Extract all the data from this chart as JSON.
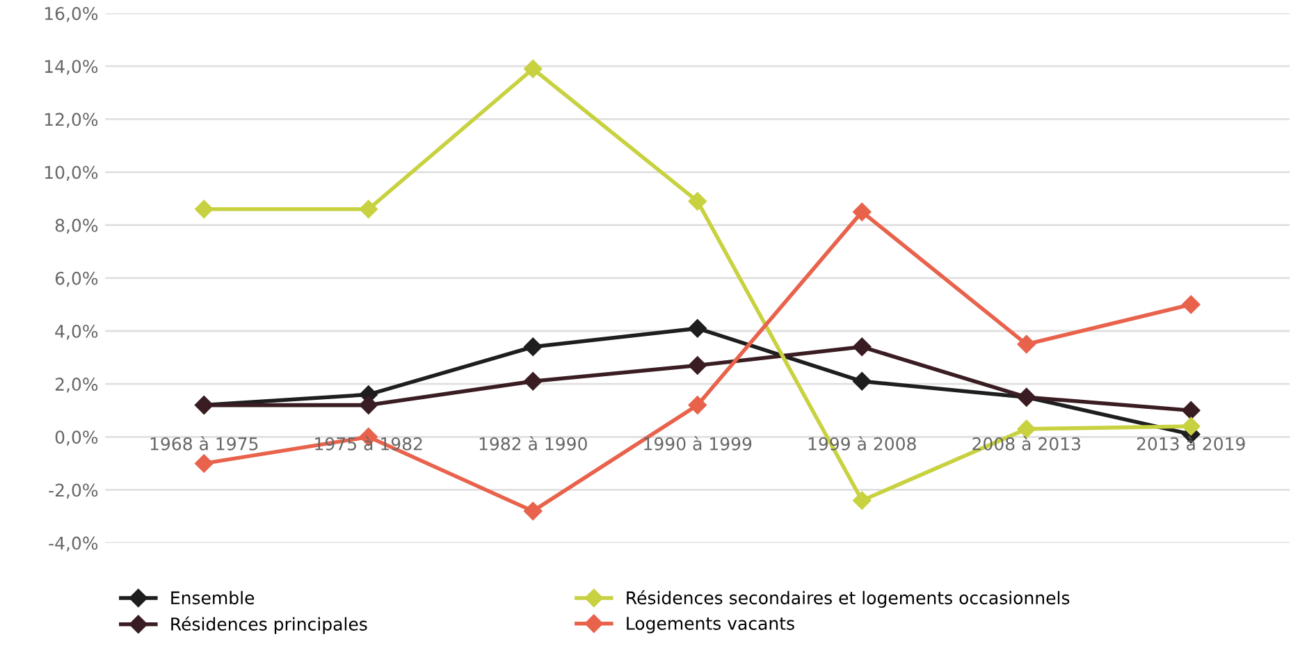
{
  "chart_data": {
    "type": "line",
    "categories": [
      "1968 à 1975",
      "1975 à 1982",
      "1982 à 1990",
      "1990 à 1999",
      "1999 à 2008",
      "2008 à 2013",
      "2013 à 2019"
    ],
    "series": [
      {
        "name": "Ensemble",
        "color": "#1e1e1e",
        "values": [
          1.2,
          1.6,
          3.4,
          4.1,
          2.1,
          1.5,
          0.1
        ]
      },
      {
        "name": "Résidences principales",
        "color": "#3a1d22",
        "values": [
          1.2,
          1.2,
          2.1,
          2.7,
          3.4,
          1.5,
          1.0
        ]
      },
      {
        "name": "Résidences secondaires et logements occasionnels",
        "color": "#c8d240",
        "values": [
          8.6,
          8.6,
          13.9,
          8.9,
          -2.4,
          0.3,
          0.4
        ]
      },
      {
        "name": "Logements vacants",
        "color": "#e8624c",
        "values": [
          -1.0,
          0.0,
          -2.8,
          1.2,
          8.5,
          3.5,
          5.0
        ]
      }
    ],
    "ylim": [
      -4,
      16
    ],
    "yticks": [
      {
        "value": -4,
        "label": "-4,0%"
      },
      {
        "value": -2,
        "label": "-2,0%"
      },
      {
        "value": 0,
        "label": "0,0%"
      },
      {
        "value": 2,
        "label": "2,0%"
      },
      {
        "value": 4,
        "label": "4,0%"
      },
      {
        "value": 6,
        "label": "6,0%"
      },
      {
        "value": 8,
        "label": "8,0%"
      },
      {
        "value": 10,
        "label": "10,0%"
      },
      {
        "value": 12,
        "label": "12,0%"
      },
      {
        "value": 14,
        "label": "14,0%"
      },
      {
        "value": 16,
        "label": "16,0%"
      }
    ],
    "grid": "y",
    "legend": "bottom",
    "marker": "diamond",
    "line_style": "solid"
  }
}
